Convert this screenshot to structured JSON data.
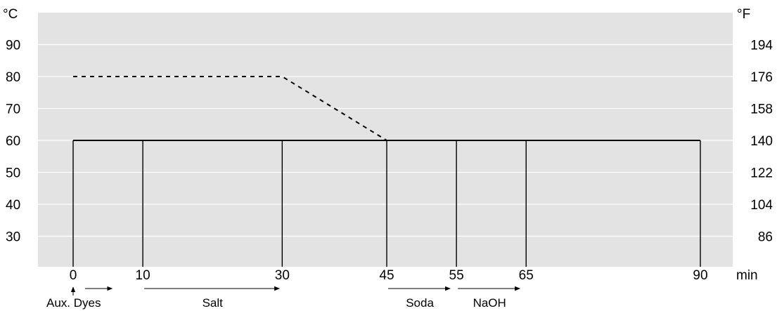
{
  "chart_data": {
    "type": "line",
    "title": "",
    "xlabel": "min",
    "ylabel_left": "°C",
    "ylabel_right": "°F",
    "xlim": [
      0,
      90
    ],
    "ylim": [
      20,
      98
    ],
    "grid": "horizontal",
    "x_ticks": [
      0,
      10,
      30,
      45,
      55,
      65,
      90
    ],
    "x_tick_labels": [
      "0",
      "10",
      "30",
      "45",
      "55",
      "65",
      "90"
    ],
    "y_ticks_left": [
      30,
      40,
      50,
      60,
      70,
      80,
      90
    ],
    "y_tick_labels_left": [
      "30",
      "40",
      "50",
      "60",
      "70",
      "80",
      "90"
    ],
    "y_ticks_right_positions_c": [
      30,
      40,
      50,
      60,
      70,
      80,
      90
    ],
    "y_tick_labels_right": [
      "86",
      "104",
      "122",
      "140",
      "158",
      "176",
      "194"
    ],
    "series": [
      {
        "style": "solid",
        "x": [
          0,
          90
        ],
        "y": [
          60,
          60
        ]
      },
      {
        "style": "dashed",
        "x": [
          0,
          30,
          45
        ],
        "y": [
          80,
          80,
          60
        ]
      }
    ],
    "vertical_markers": [
      0,
      10,
      30,
      45,
      55,
      65,
      90
    ],
    "process_steps": [
      {
        "label": "Aux. Dyes",
        "at": 0,
        "kind": "point"
      },
      {
        "label": "",
        "from": 1.5,
        "to": 6,
        "kind": "arrow",
        "attach": "Aux. Dyes"
      },
      {
        "label": "Salt",
        "from": 10,
        "to": 30,
        "kind": "arrow"
      },
      {
        "label": "Soda",
        "from": 45,
        "to": 54.5,
        "kind": "arrow"
      },
      {
        "label": "NaOH",
        "from": 55,
        "to": 64.5,
        "kind": "arrow"
      }
    ],
    "colors": {
      "plot_background": "#e3e3e3",
      "gridline": "#ffffff",
      "line": "#000000"
    }
  }
}
